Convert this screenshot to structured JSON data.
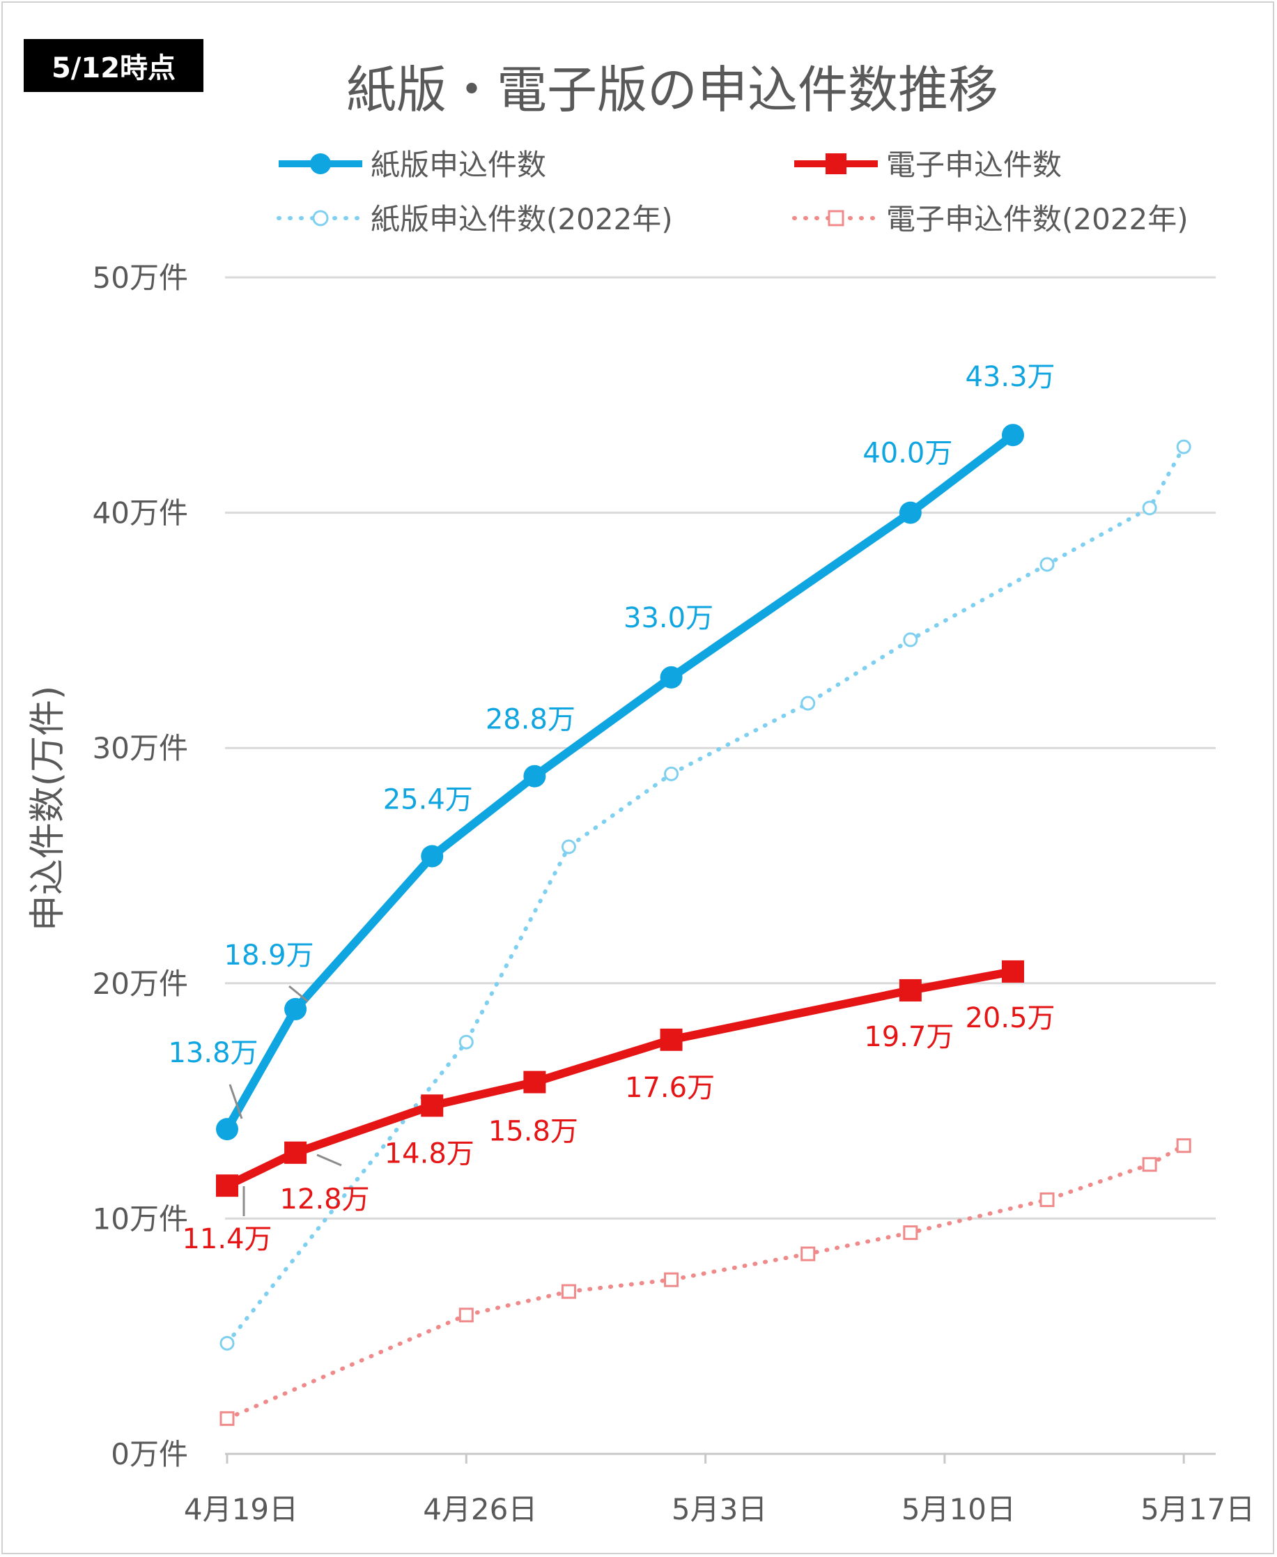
{
  "badge": "5/12時点",
  "chart_data": {
    "type": "line",
    "title": "紙版・電子版の申込件数推移",
    "ylabel": "申込件数(万件)",
    "ylim": [
      0,
      50
    ],
    "y_ticks": [
      "0万件",
      "10万件",
      "20万件",
      "30万件",
      "40万件",
      "50万件"
    ],
    "x_ticks": [
      "4月19日",
      "4月26日",
      "5月3日",
      "5月10日",
      "5月17日"
    ],
    "grid": true,
    "legend_position": "top",
    "colors": {
      "paper": "#0EA5E1",
      "digital": "#E51415",
      "paper2022": "#7FD0F0",
      "digital2022": "#F08A8A"
    },
    "series": [
      {
        "name": "紙版申込件数",
        "style": "solid-circle",
        "x": [
          "4月19日",
          "4月21日",
          "4月25日",
          "4月28日",
          "5月2日",
          "5月9日",
          "5月12日"
        ],
        "values": [
          13.8,
          18.9,
          25.4,
          28.8,
          33.0,
          40.0,
          43.3
        ],
        "labels": [
          "13.8万",
          "18.9万",
          "25.4万",
          "28.8万",
          "33.0万",
          "40.0万",
          "43.3万"
        ]
      },
      {
        "name": "電子申込件数",
        "style": "solid-square",
        "x": [
          "4月19日",
          "4月21日",
          "4月25日",
          "4月28日",
          "5月2日",
          "5月9日",
          "5月12日"
        ],
        "values": [
          11.4,
          12.8,
          14.8,
          15.8,
          17.6,
          19.7,
          20.5
        ],
        "labels": [
          "11.4万",
          "12.8万",
          "14.8万",
          "15.8万",
          "17.6万",
          "19.7万",
          "20.5万"
        ]
      },
      {
        "name": "紙版申込件数(2022年)",
        "style": "dotted-circle",
        "x": [
          "4月19日",
          "4月26日",
          "4月29日",
          "5月2日",
          "5月6日",
          "5月9日",
          "5月13日",
          "5月16日",
          "5月17日"
        ],
        "values": [
          4.7,
          17.5,
          25.8,
          28.9,
          31.9,
          34.6,
          37.8,
          40.2,
          42.8
        ]
      },
      {
        "name": "電子申込件数(2022年)",
        "style": "dotted-square",
        "x": [
          "4月19日",
          "4月26日",
          "4月29日",
          "5月2日",
          "5月6日",
          "5月9日",
          "5月13日",
          "5月16日",
          "5月17日"
        ],
        "values": [
          1.5,
          5.9,
          6.9,
          7.4,
          8.5,
          9.4,
          10.8,
          12.3,
          13.1
        ]
      }
    ]
  }
}
